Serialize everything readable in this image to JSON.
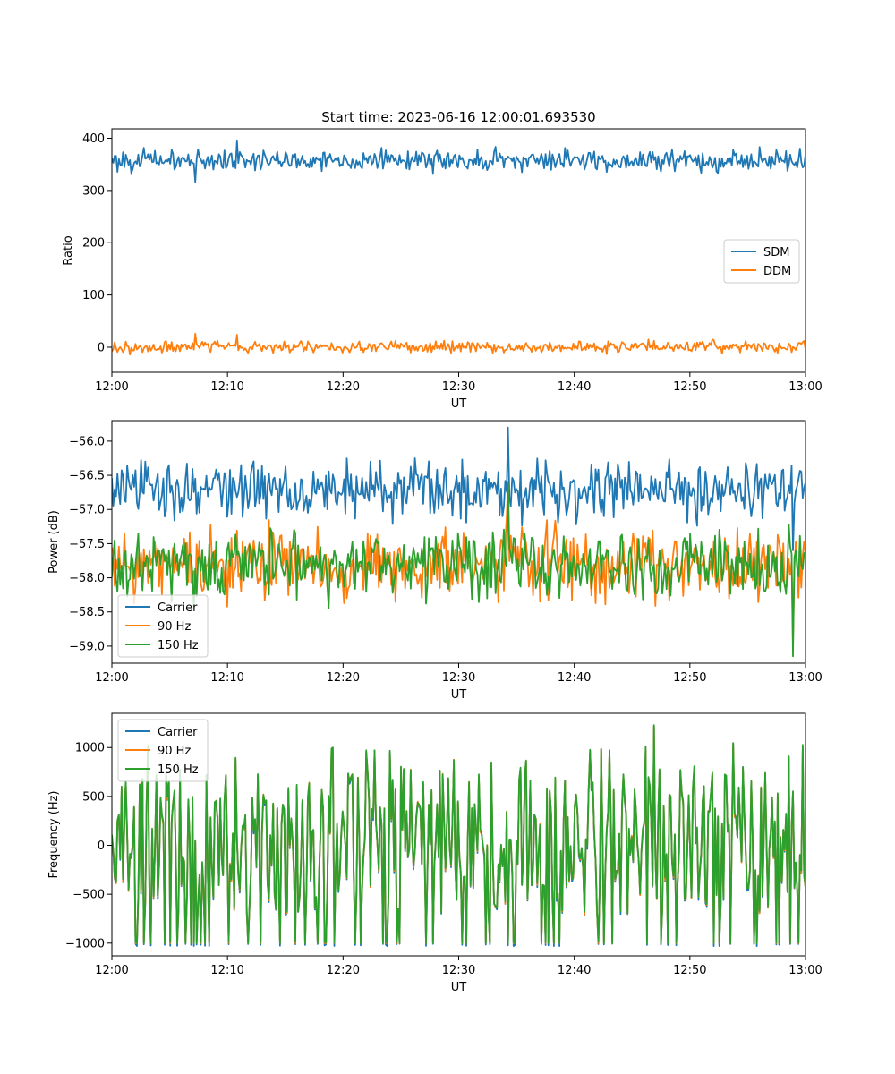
{
  "figure": {
    "title": "Start time: 2023-06-16 12:00:01.693530"
  },
  "chart_data": [
    {
      "type": "line",
      "xlabel": "UT",
      "ylabel": "Ratio",
      "x_range": [
        "12:00",
        "13:00"
      ],
      "x_ticks": [
        "12:00",
        "12:10",
        "12:20",
        "12:30",
        "12:40",
        "12:50",
        "13:00"
      ],
      "ylim": [
        -48,
        418
      ],
      "y_ticks": [
        0,
        100,
        200,
        300,
        400
      ],
      "y_tick_labels": [
        "0",
        "100",
        "200",
        "300",
        "400"
      ],
      "legend_position": "center-right",
      "series": [
        {
          "name": "SDM",
          "color": "#1f77b4",
          "mean": 358,
          "amplitude": 14,
          "spike_up": 38,
          "spike_down": 42,
          "samples": 500
        },
        {
          "name": "DDM",
          "color": "#ff7f0e",
          "mean": 0,
          "amplitude": 8,
          "spike_up": 24,
          "spike_down": -26,
          "samples": 500
        }
      ]
    },
    {
      "type": "line",
      "xlabel": "UT",
      "ylabel": "Power (dB)",
      "x_range": [
        "12:00",
        "13:00"
      ],
      "x_ticks": [
        "12:00",
        "12:10",
        "12:20",
        "12:30",
        "12:40",
        "12:50",
        "13:00"
      ],
      "ylim": [
        -59.25,
        -55.7
      ],
      "y_ticks": [
        -59.0,
        -58.5,
        -58.0,
        -57.5,
        -57.0,
        -56.5,
        -56.0
      ],
      "y_tick_labels": [
        "−59.0",
        "−58.5",
        "−58.0",
        "−57.5",
        "−57.0",
        "−56.5",
        "−56.0"
      ],
      "legend_position": "lower-left",
      "series": [
        {
          "name": "Carrier",
          "color": "#1f77b4",
          "mean": -56.7,
          "amplitude": 0.3,
          "max": -55.8,
          "min": -57.6,
          "samples": 500
        },
        {
          "name": "90 Hz",
          "color": "#ff7f0e",
          "mean": -57.8,
          "amplitude": 0.35,
          "max": -56.6,
          "min": -58.95,
          "samples": 500
        },
        {
          "name": "150 Hz",
          "color": "#2ca02c",
          "mean": -57.8,
          "amplitude": 0.35,
          "max": -56.6,
          "min": -59.15,
          "samples": 500
        }
      ]
    },
    {
      "type": "line",
      "xlabel": "UT",
      "ylabel": "Frequency (Hz)",
      "x_range": [
        "12:00",
        "13:00"
      ],
      "x_ticks": [
        "12:00",
        "12:10",
        "12:20",
        "12:30",
        "12:40",
        "12:50",
        "13:00"
      ],
      "ylim": [
        -1130,
        1350
      ],
      "y_ticks": [
        -1000,
        -500,
        0,
        500,
        1000
      ],
      "y_tick_labels": [
        "−1000",
        "−500",
        "0",
        "500",
        "1000"
      ],
      "legend_position": "upper-left",
      "series": [
        {
          "name": "Carrier",
          "color": "#1f77b4",
          "mean": 50,
          "amplitude": 450,
          "max": 1230,
          "min": -1030,
          "samples": 500
        },
        {
          "name": "90 Hz",
          "color": "#ff7f0e",
          "mean": 50,
          "amplitude": 450,
          "max": 1230,
          "min": -1000,
          "samples": 500
        },
        {
          "name": "150 Hz",
          "color": "#2ca02c",
          "mean": 50,
          "amplitude": 450,
          "max": 1230,
          "min": -1000,
          "samples": 500
        }
      ]
    }
  ]
}
